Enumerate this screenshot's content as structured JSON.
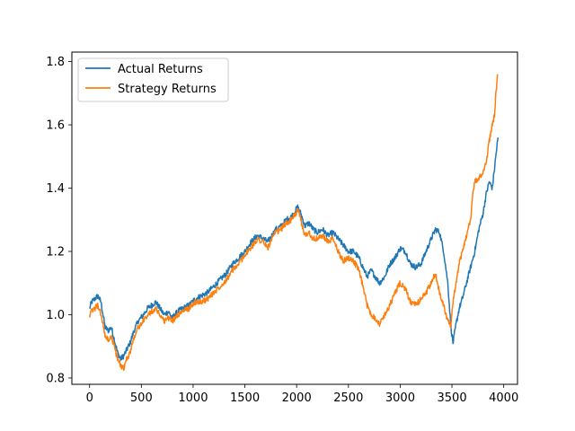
{
  "chart_data": {
    "type": "line",
    "title": "",
    "xlabel": "",
    "ylabel": "",
    "xlim": [
      -171,
      4133
    ],
    "ylim": [
      0.78,
      1.83
    ],
    "xticks": [
      0,
      500,
      1000,
      1500,
      2000,
      2500,
      3000,
      3500,
      4000
    ],
    "xtick_labels": [
      "0",
      "500",
      "1000",
      "1500",
      "2000",
      "2500",
      "3000",
      "3500",
      "4000"
    ],
    "yticks": [
      0.8,
      1.0,
      1.2,
      1.4,
      1.6,
      1.8
    ],
    "ytick_labels": [
      "0.8",
      "1.0",
      "1.2",
      "1.4",
      "1.6",
      "1.8"
    ],
    "grid": false,
    "legend_position": "top-left",
    "series": [
      {
        "name": "Actual Returns",
        "color": "#1f77b4",
        "points": [
          [
            0,
            1.02
          ],
          [
            20,
            1.04
          ],
          [
            50,
            1.05
          ],
          [
            80,
            1.06
          ],
          [
            110,
            1.04
          ],
          [
            130,
            1.0
          ],
          [
            150,
            0.96
          ],
          [
            180,
            0.95
          ],
          [
            210,
            0.96
          ],
          [
            240,
            0.92
          ],
          [
            270,
            0.88
          ],
          [
            300,
            0.86
          ],
          [
            330,
            0.87
          ],
          [
            360,
            0.89
          ],
          [
            390,
            0.91
          ],
          [
            430,
            0.95
          ],
          [
            470,
            0.98
          ],
          [
            520,
            1.0
          ],
          [
            560,
            1.02
          ],
          [
            600,
            1.03
          ],
          [
            640,
            1.04
          ],
          [
            680,
            1.02
          ],
          [
            720,
            1.0
          ],
          [
            760,
            1.01
          ],
          [
            800,
            0.99
          ],
          [
            850,
            1.01
          ],
          [
            900,
            1.02
          ],
          [
            960,
            1.03
          ],
          [
            1020,
            1.05
          ],
          [
            1080,
            1.06
          ],
          [
            1140,
            1.07
          ],
          [
            1200,
            1.09
          ],
          [
            1260,
            1.11
          ],
          [
            1320,
            1.13
          ],
          [
            1380,
            1.16
          ],
          [
            1440,
            1.18
          ],
          [
            1500,
            1.2
          ],
          [
            1560,
            1.23
          ],
          [
            1620,
            1.25
          ],
          [
            1680,
            1.24
          ],
          [
            1720,
            1.23
          ],
          [
            1760,
            1.25
          ],
          [
            1800,
            1.27
          ],
          [
            1850,
            1.28
          ],
          [
            1900,
            1.3
          ],
          [
            1950,
            1.31
          ],
          [
            1990,
            1.33
          ],
          [
            2010,
            1.34
          ],
          [
            2040,
            1.32
          ],
          [
            2080,
            1.28
          ],
          [
            2120,
            1.29
          ],
          [
            2160,
            1.27
          ],
          [
            2200,
            1.26
          ],
          [
            2250,
            1.27
          ],
          [
            2300,
            1.25
          ],
          [
            2350,
            1.26
          ],
          [
            2400,
            1.24
          ],
          [
            2450,
            1.22
          ],
          [
            2500,
            1.2
          ],
          [
            2550,
            1.2
          ],
          [
            2600,
            1.18
          ],
          [
            2640,
            1.15
          ],
          [
            2680,
            1.12
          ],
          [
            2720,
            1.14
          ],
          [
            2760,
            1.12
          ],
          [
            2800,
            1.1
          ],
          [
            2850,
            1.12
          ],
          [
            2900,
            1.16
          ],
          [
            2950,
            1.18
          ],
          [
            3000,
            1.21
          ],
          [
            3050,
            1.2
          ],
          [
            3100,
            1.16
          ],
          [
            3150,
            1.15
          ],
          [
            3200,
            1.16
          ],
          [
            3250,
            1.2
          ],
          [
            3300,
            1.24
          ],
          [
            3340,
            1.27
          ],
          [
            3380,
            1.26
          ],
          [
            3420,
            1.2
          ],
          [
            3460,
            1.1
          ],
          [
            3490,
            0.96
          ],
          [
            3510,
            0.91
          ],
          [
            3540,
            0.97
          ],
          [
            3570,
            1.02
          ],
          [
            3600,
            1.05
          ],
          [
            3640,
            1.1
          ],
          [
            3680,
            1.15
          ],
          [
            3720,
            1.2
          ],
          [
            3760,
            1.27
          ],
          [
            3800,
            1.32
          ],
          [
            3830,
            1.38
          ],
          [
            3860,
            1.42
          ],
          [
            3890,
            1.4
          ],
          [
            3910,
            1.46
          ],
          [
            3930,
            1.52
          ],
          [
            3945,
            1.56
          ]
        ]
      },
      {
        "name": "Strategy Returns",
        "color": "#ff7f0e",
        "points": [
          [
            0,
            1.0
          ],
          [
            20,
            1.01
          ],
          [
            50,
            1.02
          ],
          [
            80,
            1.03
          ],
          [
            110,
            1.0
          ],
          [
            130,
            0.97
          ],
          [
            150,
            0.93
          ],
          [
            180,
            0.92
          ],
          [
            210,
            0.93
          ],
          [
            240,
            0.9
          ],
          [
            270,
            0.86
          ],
          [
            300,
            0.84
          ],
          [
            330,
            0.83
          ],
          [
            360,
            0.86
          ],
          [
            390,
            0.88
          ],
          [
            430,
            0.93
          ],
          [
            470,
            0.96
          ],
          [
            520,
            0.98
          ],
          [
            560,
            1.0
          ],
          [
            600,
            1.01
          ],
          [
            640,
            1.02
          ],
          [
            680,
            1.0
          ],
          [
            720,
            0.98
          ],
          [
            760,
            0.99
          ],
          [
            800,
            0.98
          ],
          [
            850,
            1.0
          ],
          [
            900,
            1.01
          ],
          [
            960,
            1.02
          ],
          [
            1020,
            1.04
          ],
          [
            1080,
            1.04
          ],
          [
            1140,
            1.05
          ],
          [
            1200,
            1.07
          ],
          [
            1260,
            1.09
          ],
          [
            1320,
            1.11
          ],
          [
            1380,
            1.14
          ],
          [
            1440,
            1.16
          ],
          [
            1500,
            1.19
          ],
          [
            1560,
            1.21
          ],
          [
            1620,
            1.24
          ],
          [
            1680,
            1.23
          ],
          [
            1720,
            1.21
          ],
          [
            1760,
            1.24
          ],
          [
            1800,
            1.26
          ],
          [
            1850,
            1.27
          ],
          [
            1900,
            1.29
          ],
          [
            1950,
            1.3
          ],
          [
            1990,
            1.32
          ],
          [
            2010,
            1.33
          ],
          [
            2040,
            1.3
          ],
          [
            2080,
            1.25
          ],
          [
            2120,
            1.26
          ],
          [
            2160,
            1.24
          ],
          [
            2200,
            1.24
          ],
          [
            2250,
            1.25
          ],
          [
            2300,
            1.23
          ],
          [
            2350,
            1.24
          ],
          [
            2400,
            1.2
          ],
          [
            2450,
            1.17
          ],
          [
            2500,
            1.18
          ],
          [
            2550,
            1.17
          ],
          [
            2600,
            1.14
          ],
          [
            2640,
            1.09
          ],
          [
            2680,
            1.03
          ],
          [
            2720,
            1.0
          ],
          [
            2760,
            0.99
          ],
          [
            2800,
            0.97
          ],
          [
            2850,
            1.0
          ],
          [
            2900,
            1.03
          ],
          [
            2950,
            1.07
          ],
          [
            3000,
            1.1
          ],
          [
            3050,
            1.08
          ],
          [
            3100,
            1.04
          ],
          [
            3150,
            1.03
          ],
          [
            3200,
            1.05
          ],
          [
            3250,
            1.07
          ],
          [
            3300,
            1.1
          ],
          [
            3340,
            1.13
          ],
          [
            3380,
            1.07
          ],
          [
            3420,
            1.03
          ],
          [
            3460,
            0.98
          ],
          [
            3490,
            0.96
          ],
          [
            3510,
            1.04
          ],
          [
            3540,
            1.1
          ],
          [
            3570,
            1.16
          ],
          [
            3600,
            1.2
          ],
          [
            3640,
            1.25
          ],
          [
            3680,
            1.3
          ],
          [
            3700,
            1.38
          ],
          [
            3720,
            1.42
          ],
          [
            3760,
            1.43
          ],
          [
            3800,
            1.45
          ],
          [
            3830,
            1.48
          ],
          [
            3860,
            1.55
          ],
          [
            3890,
            1.6
          ],
          [
            3910,
            1.63
          ],
          [
            3925,
            1.7
          ],
          [
            3940,
            1.76
          ]
        ]
      }
    ]
  }
}
